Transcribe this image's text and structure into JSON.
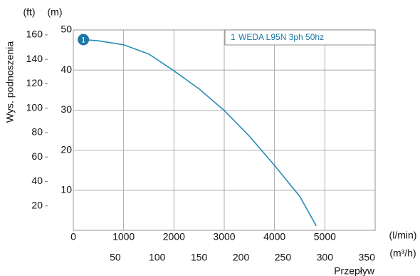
{
  "chart_data": {
    "type": "line",
    "y_label": "Wys. podnoszenia",
    "x_label": "Przepływ",
    "y_unit": "(m)",
    "y2_unit": "(ft)",
    "x_unit": "(l/min)",
    "x2_unit": "(m³/h)",
    "marker_label": "1",
    "x": [
      200,
      500,
      1000,
      1500,
      2000,
      2500,
      3000,
      3500,
      4000,
      4500,
      4830
    ],
    "series": [
      {
        "name": "WEDA L95N 3ph 50hz",
        "color": "#2a8cb5",
        "values": [
          47.6,
          47.3,
          46.3,
          44.0,
          39.8,
          35.3,
          29.9,
          23.5,
          16.2,
          8.5,
          1.1
        ]
      }
    ],
    "xlim": [
      0,
      6000
    ],
    "xticks": [
      0,
      1000,
      2000,
      3000,
      4000,
      5000
    ],
    "x2lim": [
      0,
      360
    ],
    "x2ticks": [
      50,
      100,
      150,
      200,
      250,
      300,
      350
    ],
    "ylim": [
      0,
      50
    ],
    "yticks": [
      10,
      20,
      30,
      40,
      50
    ],
    "y2lim": [
      0,
      164.04
    ],
    "y2ticks": [
      20,
      40,
      60,
      80,
      100,
      120,
      140,
      160
    ],
    "grid": true
  }
}
